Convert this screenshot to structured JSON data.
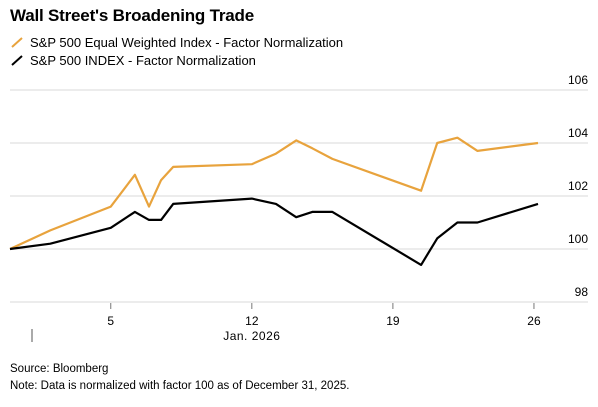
{
  "chart_data": {
    "type": "line",
    "title": "Wall Street's Broadening Trade",
    "x_tick_labels": [
      "5",
      "12",
      "19",
      "26"
    ],
    "x_tick_positions_day": [
      5,
      12,
      19,
      26
    ],
    "x_month_label": "Jan. 2026",
    "y_ticks": [
      98,
      100,
      102,
      104,
      106
    ],
    "ylim": [
      98,
      106
    ],
    "xlim_day": [
      0,
      26.3
    ],
    "grid": true,
    "legend_placement": "top-left",
    "series": [
      {
        "name": "S&P 500 Equal Weighted Index - Factor Normalization",
        "color": "#e8a33d",
        "x": [
          0,
          2,
          5,
          6.2,
          6.9,
          7.5,
          8.1,
          12,
          13.2,
          14.2,
          15,
          16,
          20.4,
          21.2,
          22.2,
          23.2,
          26.2
        ],
        "values": [
          100,
          100.7,
          101.6,
          102.8,
          101.6,
          102.6,
          103.1,
          103.2,
          103.6,
          104.1,
          103.8,
          103.4,
          102.2,
          104,
          104.2,
          103.7,
          104
        ]
      },
      {
        "name": "S&P 500 INDEX - Factor Normalization",
        "color": "#000000",
        "x": [
          0,
          2,
          5,
          6.2,
          6.9,
          7.5,
          8.1,
          12,
          13.2,
          14.2,
          15,
          16,
          20.4,
          21.2,
          22.2,
          23.2,
          26.2
        ],
        "values": [
          100,
          100.2,
          100.8,
          101.4,
          101.1,
          101.1,
          101.7,
          101.9,
          101.7,
          101.2,
          101.4,
          101.4,
          99.4,
          100.4,
          101,
          101,
          101.7
        ]
      }
    ]
  },
  "footer": {
    "source": "Source: Bloomberg",
    "note": "Note: Data is normalized with factor 100 as of December 31, 2025."
  }
}
